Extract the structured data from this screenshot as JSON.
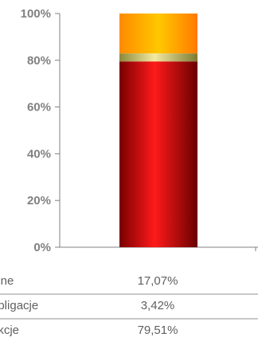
{
  "chart_data": {
    "type": "bar",
    "stacked": true,
    "percent": true,
    "ylim": [
      0,
      100
    ],
    "yticks": [
      "0%",
      "20%",
      "40%",
      "60%",
      "80%",
      "100%"
    ],
    "grid": false,
    "series": [
      {
        "name": "akcje",
        "value": 79.51,
        "value_label": "79,51%",
        "color": "#e8000a"
      },
      {
        "name": "obligacje",
        "value": 3.42,
        "value_label": "3,42%",
        "color": "#d6d07a"
      },
      {
        "name": "inne",
        "value": 17.07,
        "value_label": "17,07%",
        "color": "#ffa500"
      }
    ],
    "table_order": [
      "inne",
      "obligacje",
      "akcje"
    ]
  }
}
